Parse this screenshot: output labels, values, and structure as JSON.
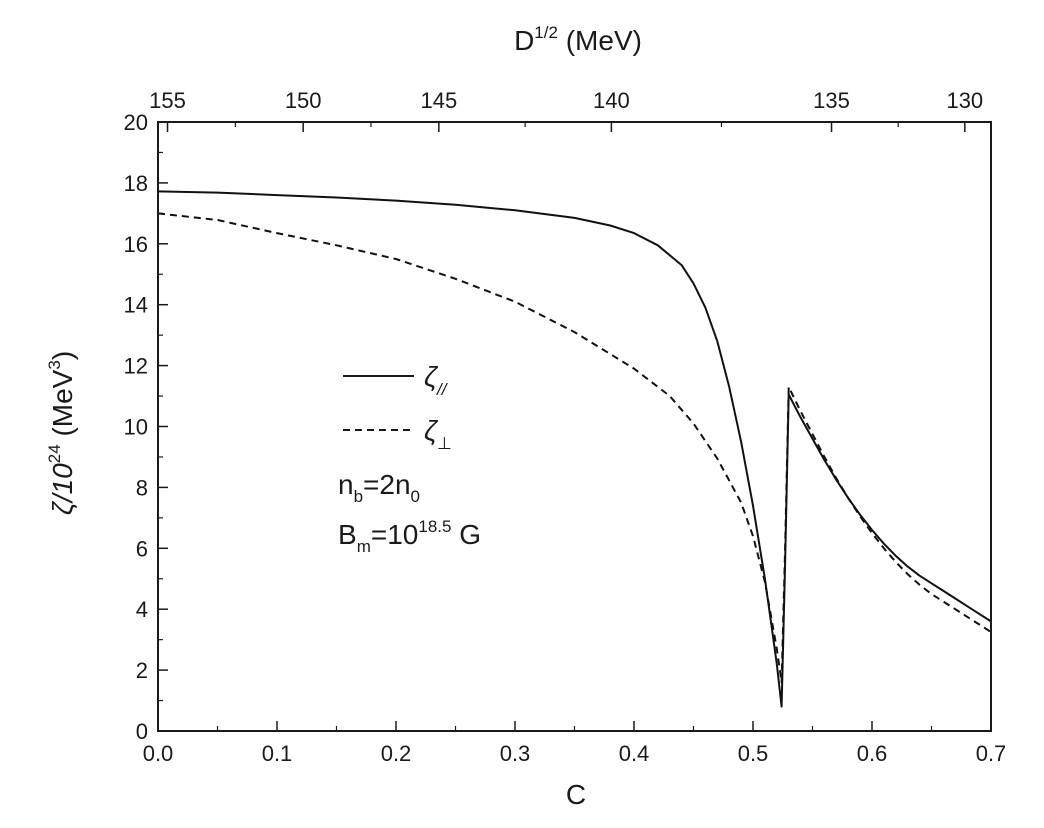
{
  "chart_data": {
    "type": "line",
    "title": "",
    "xlabel": "C",
    "ylabel": "ζ/10",
    "ylabel_exp": "24",
    "ylabel_unit": " (MeV",
    "ylabel_unit_exp": "3",
    "ylabel_close": ")",
    "top_xlabel": "D",
    "top_xlabel_exp": "1/2",
    "top_xlabel_unit": " (MeV)",
    "xlim": [
      0.0,
      0.7
    ],
    "ylim": [
      0,
      20
    ],
    "x_ticks": [
      0.0,
      0.1,
      0.2,
      0.3,
      0.4,
      0.5,
      0.6,
      0.7
    ],
    "x_tick_labels": [
      "0.0",
      "0.1",
      "0.2",
      "0.3",
      "0.4",
      "0.5",
      "0.6",
      "0.7"
    ],
    "y_ticks": [
      0,
      2,
      4,
      6,
      8,
      10,
      12,
      14,
      16,
      18,
      20
    ],
    "y_tick_labels": [
      "0",
      "2",
      "4",
      "6",
      "8",
      "10",
      "12",
      "14",
      "16",
      "18",
      "20"
    ],
    "top_ticks": [
      {
        "label": "155",
        "x": 0.008
      },
      {
        "label": "150",
        "x": 0.122
      },
      {
        "label": "145",
        "x": 0.236
      },
      {
        "label": "140",
        "x": 0.381
      },
      {
        "label": "135",
        "x": 0.566
      },
      {
        "label": "130",
        "x": 0.678
      }
    ],
    "series": [
      {
        "name": "ζ//",
        "style": "solid",
        "points": [
          [
            0.0,
            17.72
          ],
          [
            0.05,
            17.68
          ],
          [
            0.1,
            17.6
          ],
          [
            0.15,
            17.52
          ],
          [
            0.2,
            17.42
          ],
          [
            0.25,
            17.28
          ],
          [
            0.3,
            17.1
          ],
          [
            0.35,
            16.85
          ],
          [
            0.38,
            16.6
          ],
          [
            0.4,
            16.35
          ],
          [
            0.42,
            15.95
          ],
          [
            0.44,
            15.3
          ],
          [
            0.45,
            14.7
          ],
          [
            0.46,
            13.9
          ],
          [
            0.47,
            12.8
          ],
          [
            0.48,
            11.3
          ],
          [
            0.49,
            9.5
          ],
          [
            0.5,
            7.4
          ],
          [
            0.51,
            5.0
          ],
          [
            0.515,
            3.6
          ],
          [
            0.52,
            2.2
          ],
          [
            0.524,
            0.8
          ],
          [
            0.527,
            5.5
          ],
          [
            0.53,
            11.05
          ],
          [
            0.54,
            10.3
          ],
          [
            0.55,
            9.6
          ],
          [
            0.56,
            8.9
          ],
          [
            0.57,
            8.25
          ],
          [
            0.58,
            7.65
          ],
          [
            0.59,
            7.1
          ],
          [
            0.6,
            6.6
          ],
          [
            0.61,
            6.15
          ],
          [
            0.62,
            5.75
          ],
          [
            0.63,
            5.4
          ],
          [
            0.64,
            5.1
          ],
          [
            0.65,
            4.85
          ],
          [
            0.66,
            4.6
          ],
          [
            0.67,
            4.35
          ],
          [
            0.68,
            4.1
          ],
          [
            0.69,
            3.85
          ],
          [
            0.7,
            3.6
          ]
        ]
      },
      {
        "name": "ζ⊥",
        "style": "dashed",
        "points": [
          [
            0.0,
            17.0
          ],
          [
            0.05,
            16.78
          ],
          [
            0.1,
            16.35
          ],
          [
            0.15,
            15.95
          ],
          [
            0.2,
            15.5
          ],
          [
            0.25,
            14.85
          ],
          [
            0.3,
            14.1
          ],
          [
            0.35,
            13.1
          ],
          [
            0.4,
            11.9
          ],
          [
            0.43,
            11.0
          ],
          [
            0.45,
            10.1
          ],
          [
            0.47,
            8.95
          ],
          [
            0.49,
            7.5
          ],
          [
            0.5,
            6.4
          ],
          [
            0.51,
            4.9
          ],
          [
            0.52,
            2.7
          ],
          [
            0.524,
            1.6
          ],
          [
            0.527,
            6.0
          ],
          [
            0.53,
            11.3
          ],
          [
            0.54,
            10.5
          ],
          [
            0.55,
            9.75
          ],
          [
            0.56,
            9.0
          ],
          [
            0.57,
            8.3
          ],
          [
            0.58,
            7.65
          ],
          [
            0.59,
            7.05
          ],
          [
            0.6,
            6.5
          ],
          [
            0.61,
            6.0
          ],
          [
            0.62,
            5.55
          ],
          [
            0.63,
            5.15
          ],
          [
            0.64,
            4.8
          ],
          [
            0.65,
            4.5
          ],
          [
            0.66,
            4.25
          ],
          [
            0.67,
            4.0
          ],
          [
            0.68,
            3.75
          ],
          [
            0.69,
            3.5
          ],
          [
            0.7,
            3.25
          ]
        ]
      }
    ],
    "legend": {
      "placement": "center-left",
      "items": [
        {
          "main": "ζ",
          "sub": "//",
          "style": "solid"
        },
        {
          "main": "ζ",
          "sub": "⊥",
          "style": "dashed"
        }
      ]
    },
    "annotations": [
      {
        "parts": [
          "n",
          "b",
          "=2n",
          "0",
          ""
        ]
      },
      {
        "parts": [
          "B",
          "m",
          "=10",
          "18.5",
          " G"
        ]
      }
    ]
  }
}
